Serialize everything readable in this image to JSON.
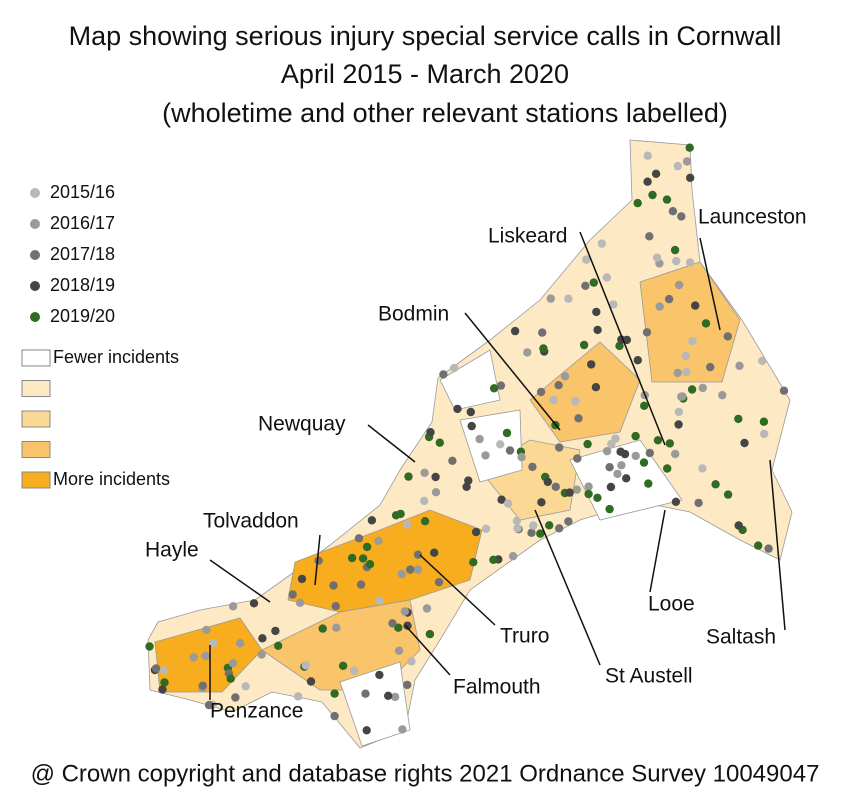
{
  "title": [
    "Map showing serious injury special service calls in Cornwall",
    "April 2015 - March 2020",
    "(wholetime and other relevant stations labelled)"
  ],
  "legend": {
    "years": [
      {
        "label": "2015/16",
        "color": "#b8b8b8"
      },
      {
        "label": "2016/17",
        "color": "#9a9a9a"
      },
      {
        "label": "2017/18",
        "color": "#707070"
      },
      {
        "label": "2018/19",
        "color": "#454545"
      },
      {
        "label": "2019/20",
        "color": "#2f6b22"
      }
    ],
    "shading": [
      {
        "label": "Fewer incidents",
        "color": "#ffffff"
      },
      {
        "color": "#fde9c4"
      },
      {
        "color": "#fbd894"
      },
      {
        "color": "#f9c46a"
      },
      {
        "label": "More incidents",
        "color": "#f7ad1e"
      }
    ]
  },
  "stations": [
    {
      "label": "Launceston"
    },
    {
      "label": "Liskeard"
    },
    {
      "label": "Bodmin"
    },
    {
      "label": "Newquay"
    },
    {
      "label": "Tolvaddon"
    },
    {
      "label": "Hayle"
    },
    {
      "label": "Truro"
    },
    {
      "label": "St Austell"
    },
    {
      "label": "Falmouth"
    },
    {
      "label": "Penzance"
    },
    {
      "label": "Looe"
    },
    {
      "label": "Saltash"
    }
  ],
  "copyright": "@ Crown copyright and database rights 2021 Ordnance Survey 10049047"
}
